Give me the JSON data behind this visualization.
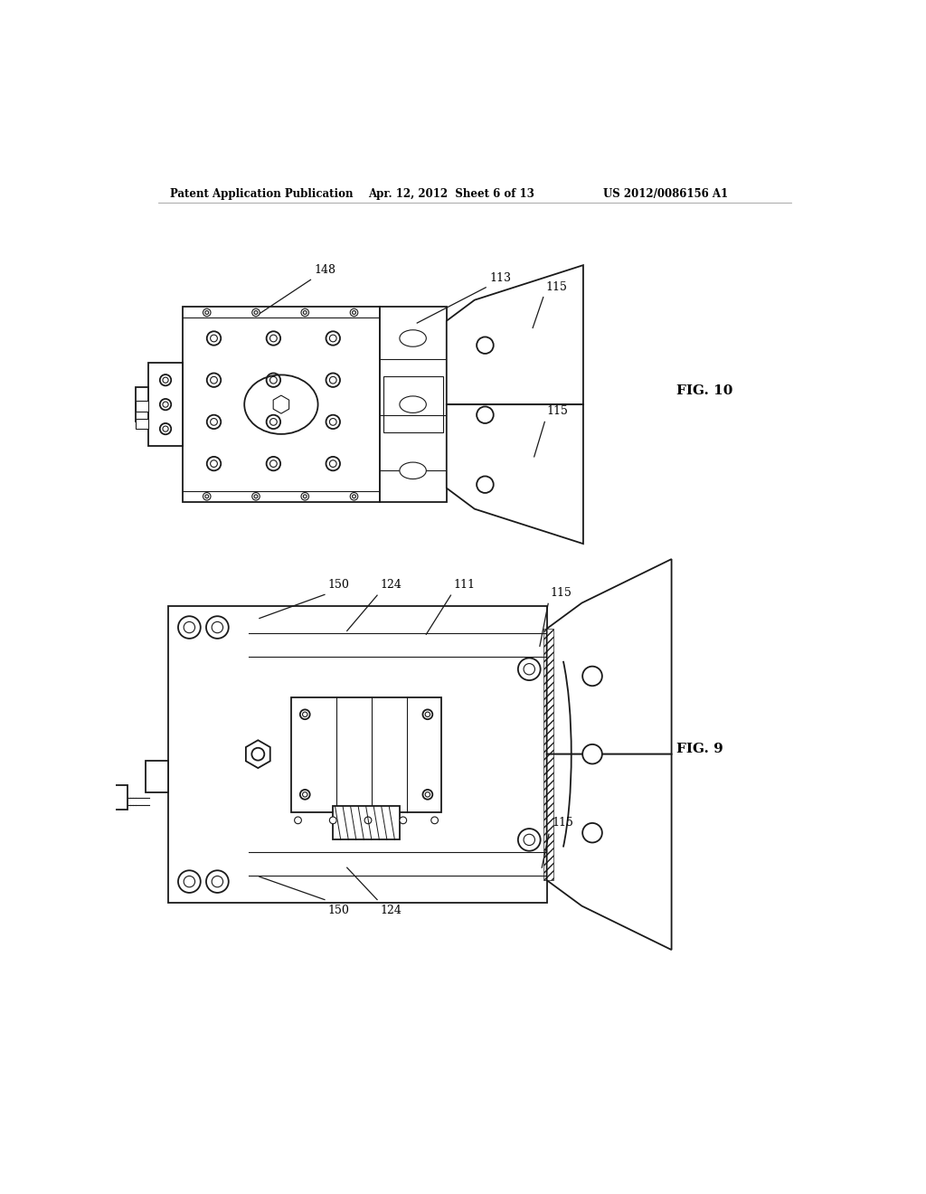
{
  "bg_color": "#ffffff",
  "header_left": "Patent Application Publication",
  "header_mid": "Apr. 12, 2012  Sheet 6 of 13",
  "header_right": "US 2012/0086156 A1",
  "fig10_label": "FIG. 10",
  "fig9_label": "FIG. 9",
  "lc": "#1a1a1a",
  "lw_main": 1.3,
  "lw_thin": 0.8
}
